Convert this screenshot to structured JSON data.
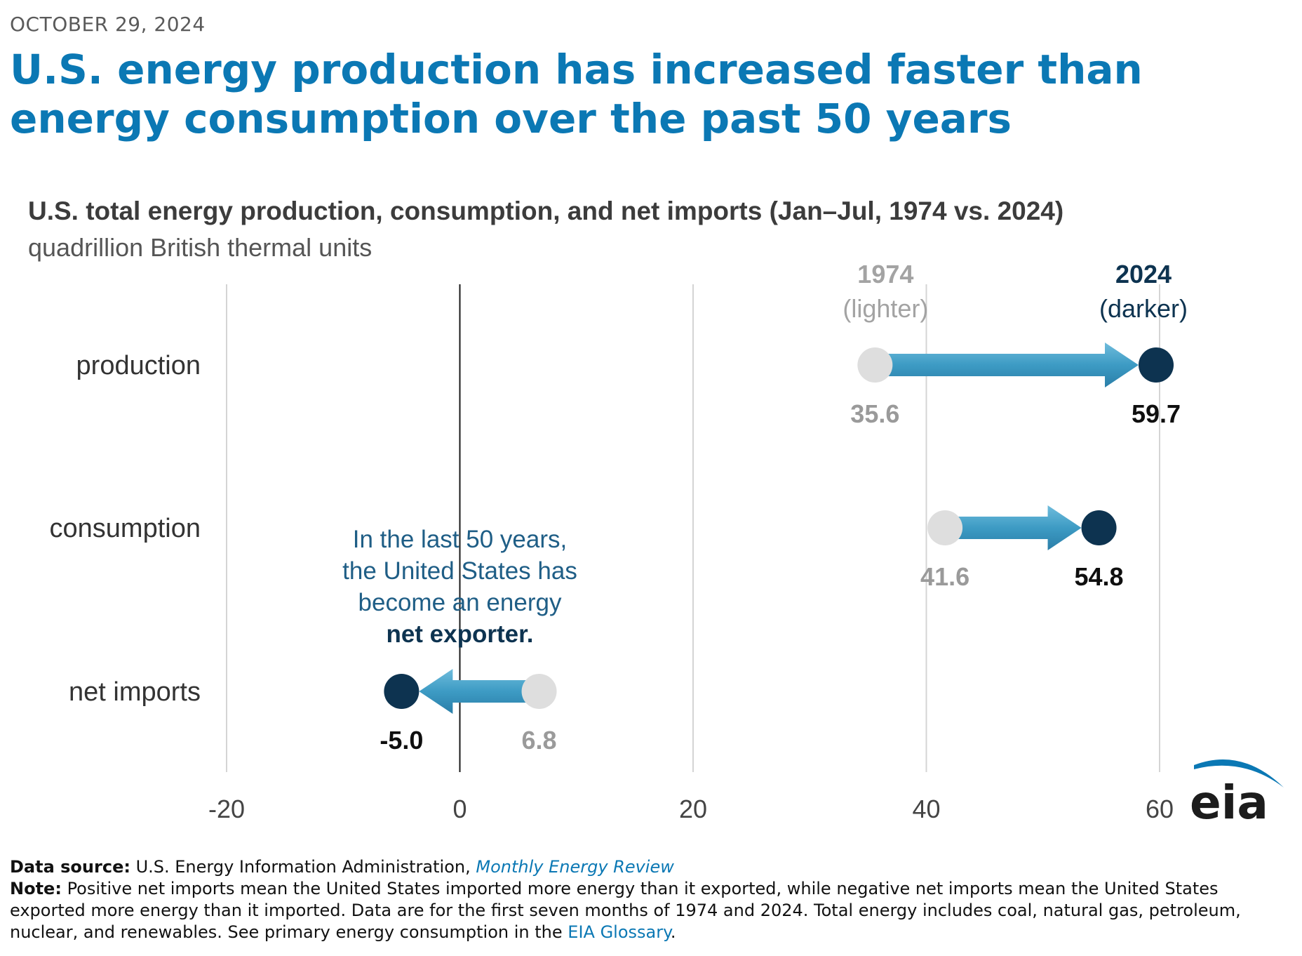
{
  "date": "OCTOBER 29, 2024",
  "headline": "U.S. energy production has increased faster than energy consumption over the past 50 years",
  "chart_data": {
    "type": "dumbbell",
    "title": "U.S. total energy production, consumption, and net imports (Jan–Jul, 1974 vs. 2024)",
    "subtitle": "quadrillion British thermal units",
    "categories": [
      "production",
      "consumption",
      "net imports"
    ],
    "series": [
      {
        "name": "1974",
        "note": "(lighter)",
        "values": [
          35.6,
          41.6,
          6.8
        ],
        "color": "#dedede",
        "label_color": "#9a9a9a"
      },
      {
        "name": "2024",
        "note": "(darker)",
        "values": [
          59.7,
          54.8,
          -5.0
        ],
        "color": "#0d3350",
        "label_color": "#0f0f0f"
      }
    ],
    "value_labels": {
      "1974": [
        "35.6",
        "41.6",
        "6.8"
      ],
      "2024": [
        "59.7",
        "54.8",
        "-5.0"
      ]
    },
    "xlim": [
      -20,
      60
    ],
    "xticks": [
      -20,
      0,
      20,
      40,
      60
    ],
    "xtick_labels": [
      "-20",
      "0",
      "20",
      "40",
      "60"
    ],
    "grid": true,
    "arrow_color": "#3d9bc4",
    "annotation": {
      "lines": [
        "In the last 50 years,",
        "the United States has",
        "become an energy"
      ],
      "bold": "net exporter."
    }
  },
  "footer": {
    "source_label": "Data source:",
    "source_text": "U.S. Energy Information Administration,",
    "source_link": "Monthly Energy Review",
    "note_label": "Note:",
    "note_text": "Positive net imports mean the United States imported more energy than it exported, while negative net imports mean the United States exported more energy than it imported. Data are for the first seven months of 1974 and 2024. Total energy includes coal, natural gas, petroleum, nuclear, and renewables. See primary energy consumption in the",
    "note_link": "EIA Glossary",
    "note_end": "."
  },
  "logo": {
    "text": "eia",
    "color": "#0b78b4",
    "text_color": "#1c1c1c"
  }
}
